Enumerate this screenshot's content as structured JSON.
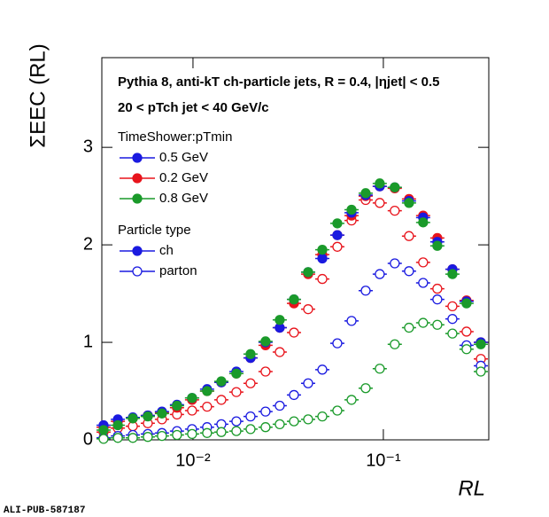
{
  "chart_data": {
    "type": "scatter",
    "title": "Pythia 8, anti-kT ch-particle jets,  R = 0.4, |ηjet| < 0.5",
    "subtitle": "20 < pTch jet < 40 GeV/c",
    "xlabel": "RL",
    "ylabel": "ΣEEC (RL)",
    "footer": "ALI-PUB-587187",
    "xscale": "log",
    "xlim": [
      0.00332,
      0.358
    ],
    "xticks": [
      {
        "value": 0.01,
        "label": "10⁻²"
      },
      {
        "value": 0.1,
        "label": "10⁻¹"
      }
    ],
    "ylim": [
      0,
      3.92
    ],
    "yticks": [
      0,
      1,
      2,
      3
    ],
    "legend": {
      "groups": [
        {
          "title": "TimeShower:pTmin",
          "entries": [
            {
              "label": "0.5 GeV",
              "color": "#1a1ae0",
              "marker": "filled"
            },
            {
              "label": "0.2 GeV",
              "color": "#e8141c",
              "marker": "filled"
            },
            {
              "label": "0.8 GeV",
              "color": "#1a9a2a",
              "marker": "filled"
            }
          ]
        },
        {
          "title": "Particle type",
          "entries": [
            {
              "label": "ch",
              "color": "#1a1ae0",
              "marker": "filled"
            },
            {
              "label": "parton",
              "color": "#1a1ae0",
              "marker": "open"
            }
          ]
        }
      ]
    },
    "x": [
      0.00339,
      0.00403,
      0.00483,
      0.00579,
      0.00687,
      0.00824,
      0.00989,
      0.01186,
      0.01409,
      0.0169,
      0.02006,
      0.02405,
      0.02856,
      0.03392,
      0.04026,
      0.0478,
      0.05731,
      0.06806,
      0.08075,
      0.09575,
      0.1148,
      0.1364,
      0.1618,
      0.1921,
      0.2306,
      0.2735,
      0.3251
    ],
    "series": [
      {
        "color": "#e8141c",
        "marker": "open",
        "values": [
          0.08,
          0.12,
          0.14,
          0.17,
          0.21,
          0.26,
          0.3,
          0.34,
          0.41,
          0.49,
          0.58,
          0.7,
          0.9,
          1.1,
          1.34,
          1.65,
          1.98,
          2.25,
          2.46,
          2.43,
          2.35,
          2.09,
          1.82,
          1.55,
          1.37,
          1.11,
          0.83
        ]
      },
      {
        "color": "#1a1ae0",
        "marker": "open",
        "values": [
          0.02,
          0.04,
          0.05,
          0.06,
          0.07,
          0.09,
          0.11,
          0.13,
          0.16,
          0.19,
          0.24,
          0.29,
          0.35,
          0.46,
          0.58,
          0.72,
          0.99,
          1.22,
          1.53,
          1.7,
          1.81,
          1.73,
          1.61,
          1.44,
          1.24,
          0.97,
          0.76
        ]
      },
      {
        "color": "#1a9a2a",
        "marker": "open",
        "values": [
          0.01,
          0.02,
          0.02,
          0.03,
          0.04,
          0.05,
          0.06,
          0.07,
          0.08,
          0.09,
          0.11,
          0.13,
          0.16,
          0.19,
          0.21,
          0.24,
          0.3,
          0.41,
          0.53,
          0.73,
          0.98,
          1.15,
          1.2,
          1.18,
          1.09,
          0.93,
          0.7
        ]
      },
      {
        "color": "#e8141c",
        "marker": "filled",
        "values": [
          0.13,
          0.19,
          0.22,
          0.25,
          0.28,
          0.33,
          0.41,
          0.5,
          0.59,
          0.68,
          0.84,
          0.97,
          1.15,
          1.4,
          1.7,
          1.9,
          2.1,
          2.3,
          2.5,
          2.6,
          2.58,
          2.47,
          2.3,
          2.07,
          1.75,
          1.43,
          1.0
        ]
      },
      {
        "color": "#1a1ae0",
        "marker": "filled",
        "values": [
          0.15,
          0.21,
          0.23,
          0.25,
          0.29,
          0.36,
          0.43,
          0.52,
          0.59,
          0.7,
          0.84,
          1.0,
          1.15,
          1.44,
          1.72,
          1.86,
          2.1,
          2.33,
          2.51,
          2.6,
          2.59,
          2.45,
          2.28,
          2.03,
          1.75,
          1.42,
          1.0
        ]
      },
      {
        "color": "#1a9a2a",
        "marker": "filled",
        "values": [
          0.1,
          0.15,
          0.22,
          0.24,
          0.27,
          0.35,
          0.43,
          0.5,
          0.6,
          0.68,
          0.88,
          1.01,
          1.23,
          1.44,
          1.72,
          1.95,
          2.22,
          2.36,
          2.53,
          2.63,
          2.59,
          2.43,
          2.23,
          1.99,
          1.7,
          1.4,
          0.98
        ]
      }
    ]
  }
}
